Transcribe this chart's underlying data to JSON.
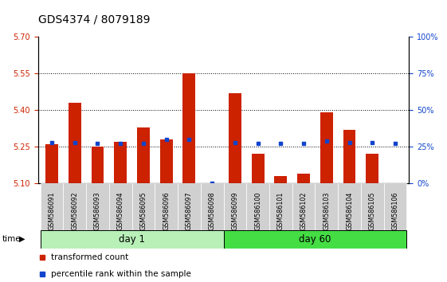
{
  "title": "GDS4374 / 8079189",
  "samples": [
    "GSM586091",
    "GSM586092",
    "GSM586093",
    "GSM586094",
    "GSM586095",
    "GSM586096",
    "GSM586097",
    "GSM586098",
    "GSM586099",
    "GSM586100",
    "GSM586101",
    "GSM586102",
    "GSM586103",
    "GSM586104",
    "GSM586105",
    "GSM586106"
  ],
  "transformed_count": [
    5.26,
    5.43,
    5.25,
    5.27,
    5.33,
    5.28,
    5.55,
    5.1,
    5.47,
    5.22,
    5.13,
    5.14,
    5.39,
    5.32,
    5.22,
    5.1
  ],
  "percentile_rank": [
    28,
    28,
    27,
    27,
    27,
    30,
    30,
    0,
    28,
    27,
    27,
    27,
    29,
    28,
    28,
    27
  ],
  "ylim_left": [
    5.1,
    5.7
  ],
  "ylim_right": [
    0,
    100
  ],
  "yticks_left": [
    5.1,
    5.25,
    5.4,
    5.55,
    5.7
  ],
  "yticks_right": [
    0,
    25,
    50,
    75,
    100
  ],
  "hlines": [
    5.25,
    5.4,
    5.55
  ],
  "bar_color": "#cc2200",
  "dot_color": "#1144cc",
  "bar_bottom": 5.1,
  "group_labels": [
    "day 1",
    "day 60"
  ],
  "group_split": 8,
  "group_color_light": "#b8f0b8",
  "group_color_dark": "#44dd44",
  "time_label": "time",
  "legend_items": [
    "transformed count",
    "percentile rank within the sample"
  ],
  "legend_colors": [
    "#cc2200",
    "#1144cc"
  ],
  "title_fontsize": 10,
  "tick_fontsize": 7,
  "bar_width": 0.55
}
